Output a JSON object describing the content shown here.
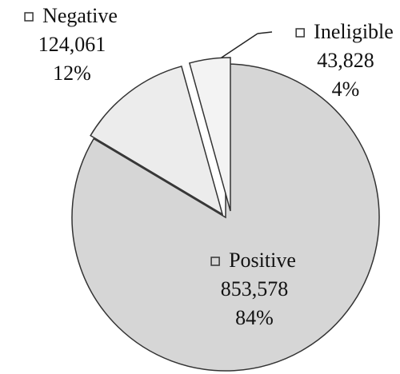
{
  "chart_data": {
    "type": "pie",
    "categories": [
      "Positive",
      "Negative",
      "Ineligible"
    ],
    "values": [
      853578,
      124061,
      43828
    ],
    "value_labels": [
      "853,578",
      "124,061",
      "43,828"
    ],
    "percent_labels": [
      "84%",
      "12%",
      "4%"
    ],
    "colors": [
      "#d6d6d6",
      "#ececec",
      "#f3f3f3"
    ]
  }
}
